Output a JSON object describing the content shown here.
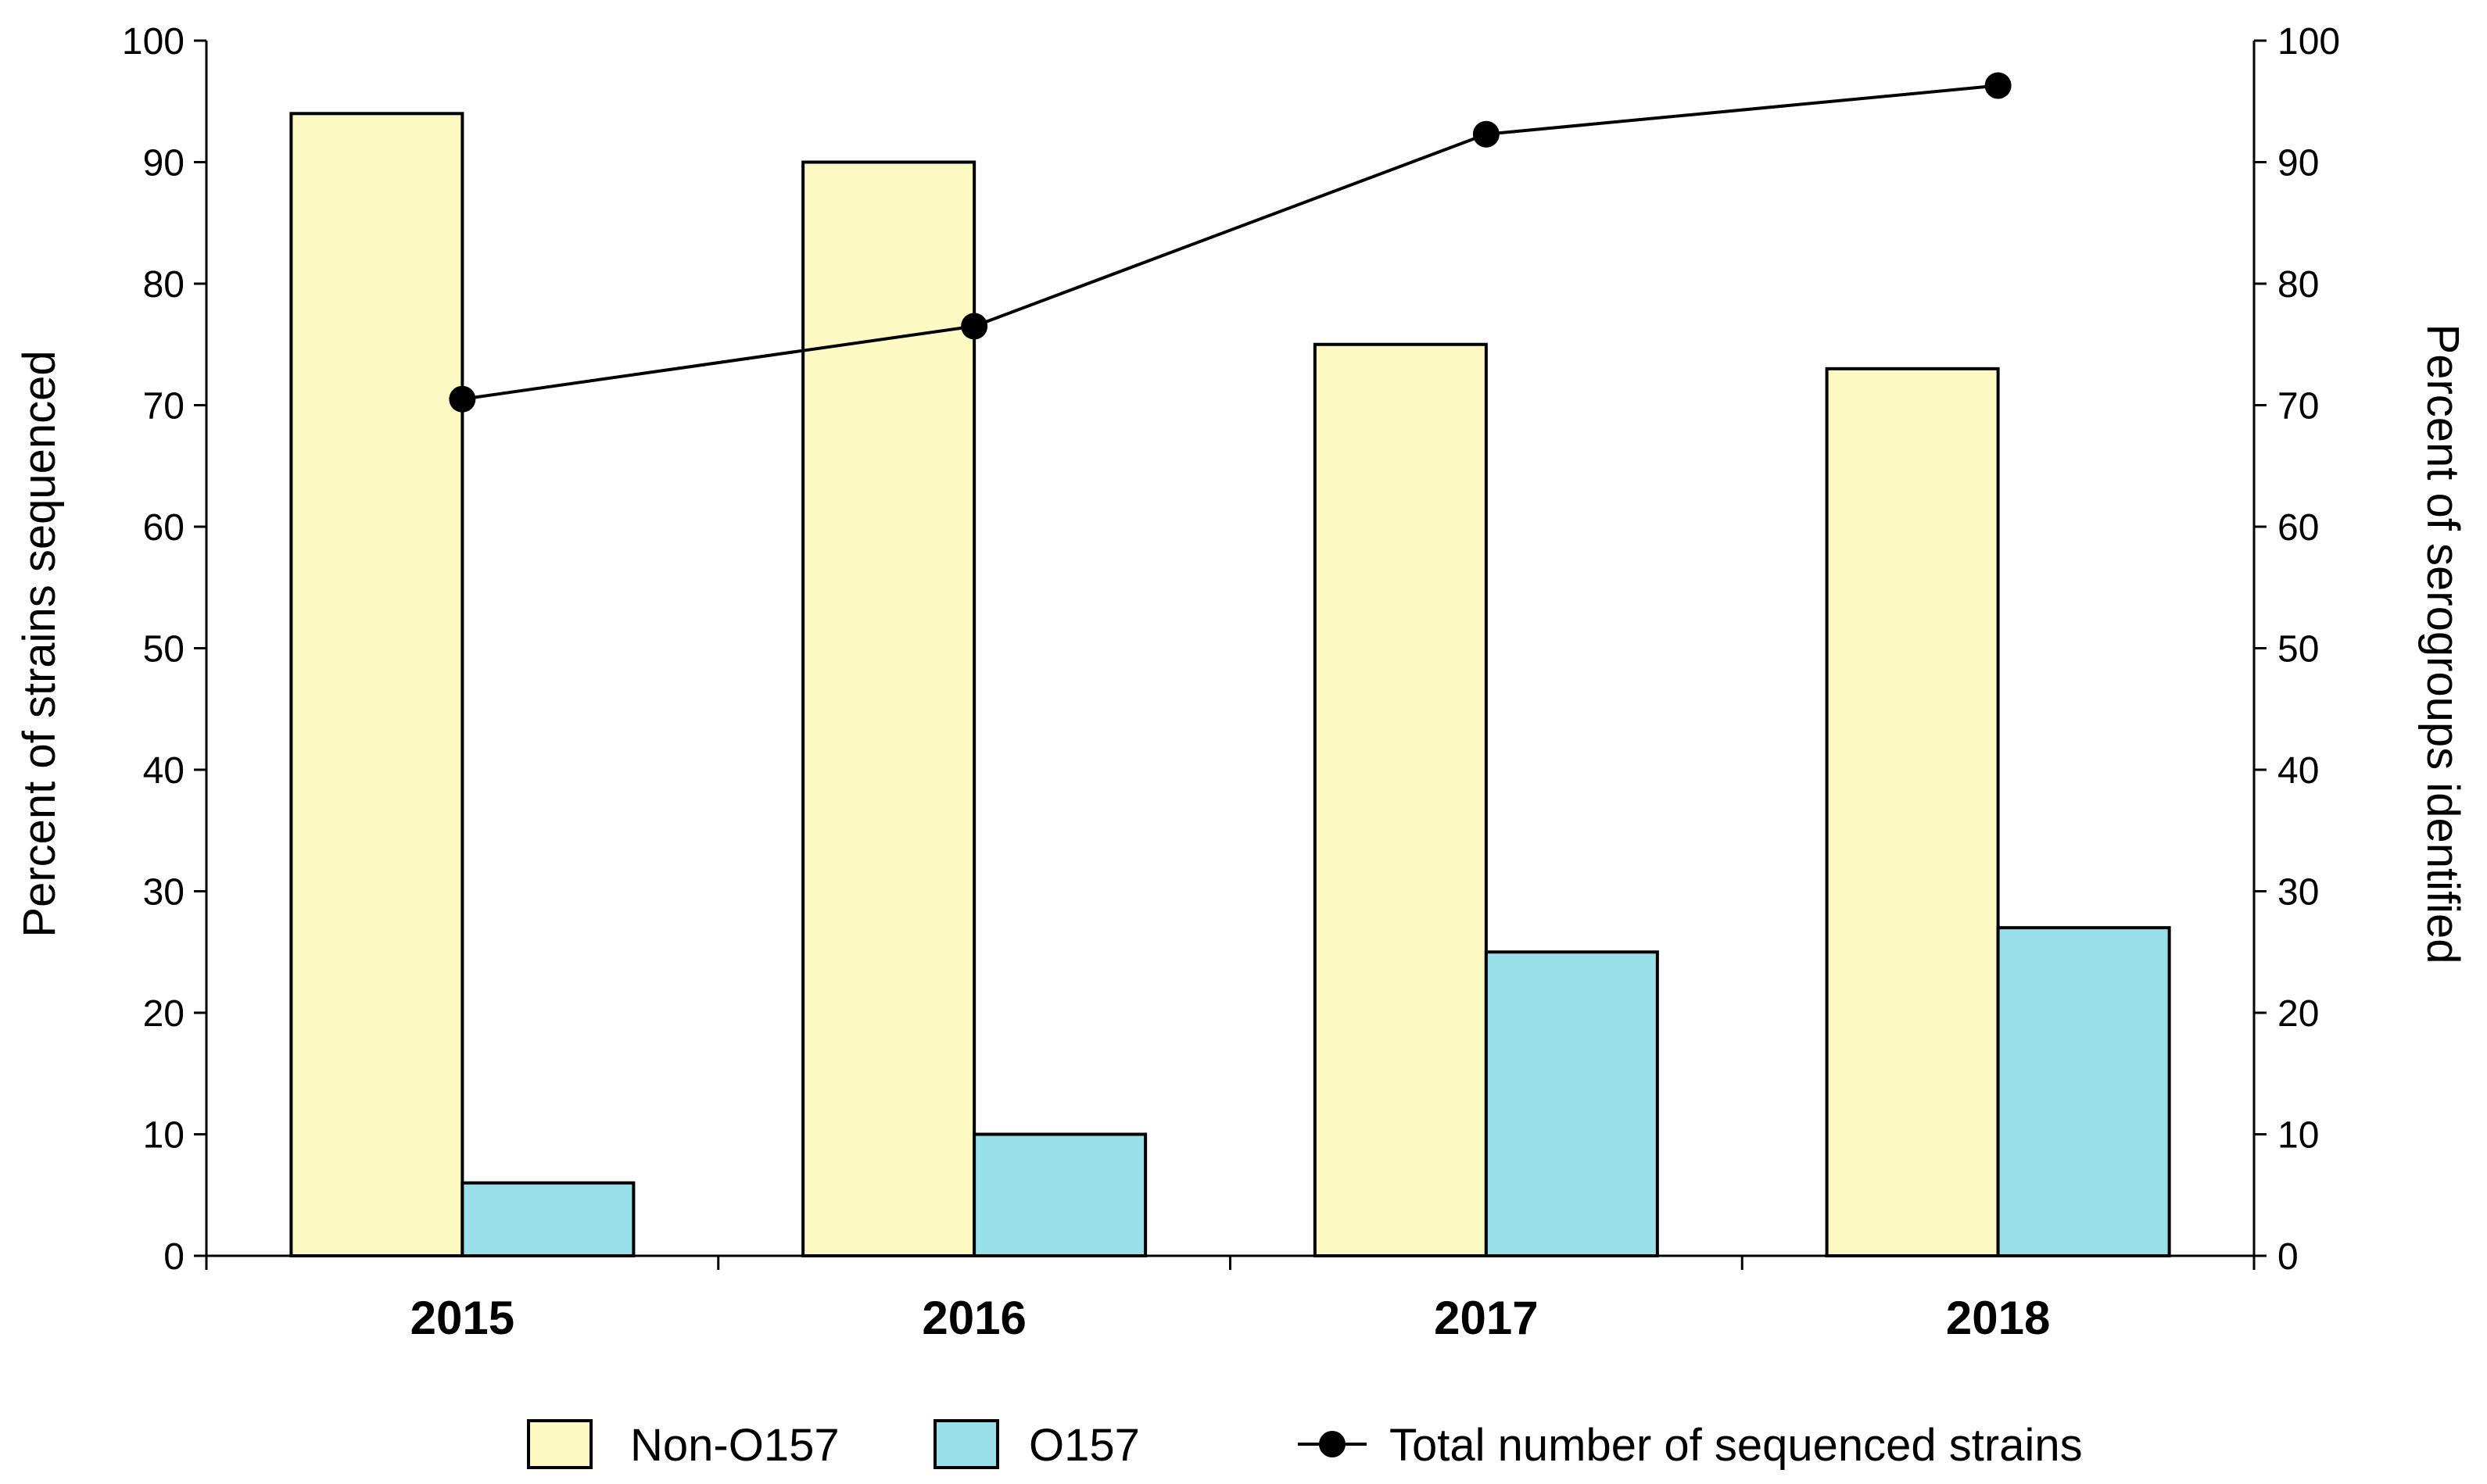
{
  "chart_data": {
    "type": "bar",
    "categories": [
      "2015",
      "2016",
      "2017",
      "2018"
    ],
    "series": [
      {
        "name": "Non-O157",
        "kind": "bar",
        "axis": "left",
        "color": "#fdf9c2",
        "values": [
          94,
          90,
          75,
          73
        ]
      },
      {
        "name": "O157",
        "kind": "bar",
        "axis": "left",
        "color": "#99e0ea",
        "values": [
          6,
          10,
          25,
          27
        ]
      },
      {
        "name": "Total number of sequenced strains",
        "kind": "line",
        "axis": "right",
        "color": "#000000",
        "values": [
          70.5,
          76.5,
          92.3,
          96.3
        ]
      }
    ],
    "ylabel": "Percent of strains sequenced",
    "y2label": "Percent of serogroups identified",
    "ylim": [
      0,
      100
    ],
    "y2lim": [
      0,
      100
    ],
    "yticks": [
      "0",
      "10",
      "20",
      "30",
      "40",
      "50",
      "60",
      "70",
      "80",
      "90",
      "100"
    ],
    "legend_position": "bottom"
  }
}
